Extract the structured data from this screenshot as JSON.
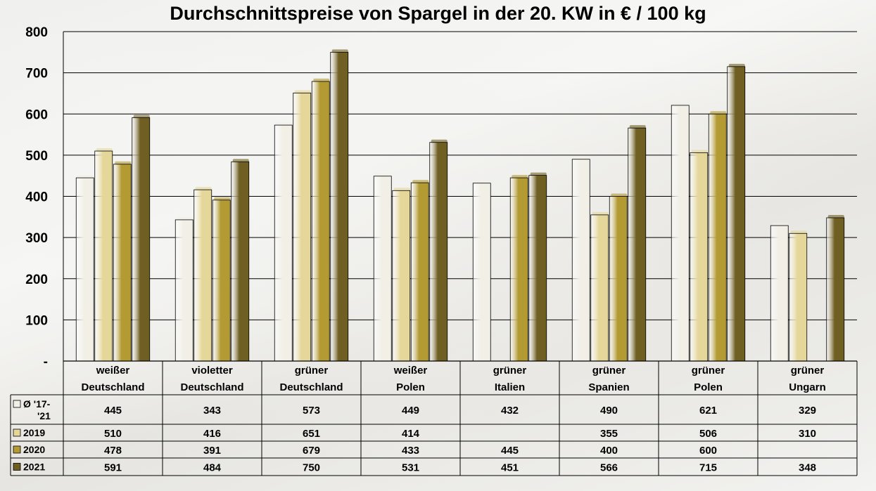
{
  "chart_data": {
    "type": "bar",
    "title": "Durchschnittspreise von Spargel in der 20. KW in € / 100 kg",
    "ylim": [
      0,
      800
    ],
    "yticks": [
      0,
      100,
      200,
      300,
      400,
      500,
      600,
      700,
      800
    ],
    "ytick_labels": [
      "-",
      "100",
      "200",
      "300",
      "400",
      "500",
      "600",
      "700",
      "800"
    ],
    "grid": true,
    "legend": "data table below chart",
    "categories": [
      [
        "weißer",
        "Deutschland"
      ],
      [
        "violetter",
        "Deutschland"
      ],
      [
        "grüner",
        "Deutschland"
      ],
      [
        "weißer",
        "Polen"
      ],
      [
        "grüner",
        "Italien"
      ],
      [
        "grüner",
        "Spanien"
      ],
      [
        "grüner",
        "Polen"
      ],
      [
        "grüner",
        "Ungarn"
      ]
    ],
    "series": [
      {
        "name": "Ø '17-'21",
        "name_lines": [
          "Ø '17-",
          "'21"
        ],
        "color": "#f1efe6",
        "values": [
          445,
          343,
          573,
          449,
          432,
          490,
          621,
          329
        ]
      },
      {
        "name": "2019",
        "name_lines": [
          "2019"
        ],
        "color": "#e5d79a",
        "values": [
          510,
          416,
          651,
          414,
          null,
          355,
          506,
          310
        ]
      },
      {
        "name": "2020",
        "name_lines": [
          "2020"
        ],
        "color": "#b39a32",
        "values": [
          478,
          391,
          679,
          433,
          445,
          400,
          600,
          null
        ]
      },
      {
        "name": "2021",
        "name_lines": [
          "2021"
        ],
        "color": "#6f5f22",
        "values": [
          591,
          484,
          750,
          531,
          451,
          566,
          715,
          348
        ]
      }
    ]
  }
}
